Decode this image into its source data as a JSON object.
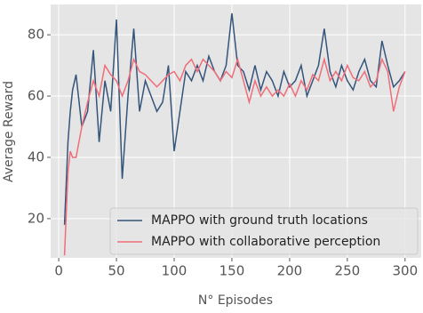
{
  "chart_data": {
    "type": "line",
    "xlabel": "N° Episodes",
    "ylabel": "Average Reward",
    "x": [
      5,
      8,
      10,
      12,
      15,
      20,
      25,
      30,
      35,
      40,
      45,
      50,
      55,
      60,
      65,
      70,
      75,
      80,
      85,
      90,
      95,
      100,
      105,
      110,
      115,
      120,
      125,
      130,
      135,
      140,
      145,
      150,
      155,
      160,
      165,
      170,
      175,
      180,
      185,
      190,
      195,
      200,
      205,
      210,
      215,
      220,
      225,
      230,
      235,
      240,
      245,
      250,
      255,
      260,
      265,
      270,
      275,
      280,
      285,
      290,
      295,
      300
    ],
    "series": [
      {
        "name": "MAPPO with ground truth locations",
        "color": "#35557b",
        "values": [
          18,
          45,
          55,
          62,
          67,
          50,
          55,
          75,
          45,
          65,
          55,
          85,
          33,
          60,
          82,
          55,
          65,
          60,
          55,
          58,
          70,
          42,
          55,
          68,
          65,
          70,
          65,
          73,
          68,
          65,
          70,
          87,
          70,
          68,
          62,
          70,
          62,
          68,
          65,
          60,
          68,
          63,
          65,
          70,
          60,
          65,
          70,
          82,
          68,
          63,
          70,
          65,
          62,
          68,
          72,
          65,
          63,
          78,
          70,
          63,
          65,
          68
        ]
      },
      {
        "name": "MAPPO with collaborative perception",
        "color": "#ef6e7a",
        "values": [
          8,
          35,
          42,
          40,
          40,
          50,
          58,
          65,
          60,
          70,
          67,
          65,
          60,
          65,
          72,
          68,
          67,
          65,
          63,
          65,
          67,
          68,
          65,
          70,
          72,
          68,
          72,
          70,
          68,
          65,
          68,
          66,
          72,
          65,
          58,
          65,
          60,
          63,
          60,
          62,
          60,
          64,
          60,
          65,
          62,
          67,
          65,
          72,
          65,
          68,
          65,
          70,
          66,
          65,
          68,
          63,
          65,
          72,
          68,
          55,
          63,
          68
        ]
      }
    ],
    "xlim": [
      -7,
      314
    ],
    "ylim": [
      7.2,
      89.9
    ],
    "xticks": [
      0,
      50,
      100,
      150,
      200,
      250,
      300
    ],
    "yticks": [
      20,
      40,
      60,
      80
    ],
    "grid": true,
    "legend": "lower right"
  }
}
